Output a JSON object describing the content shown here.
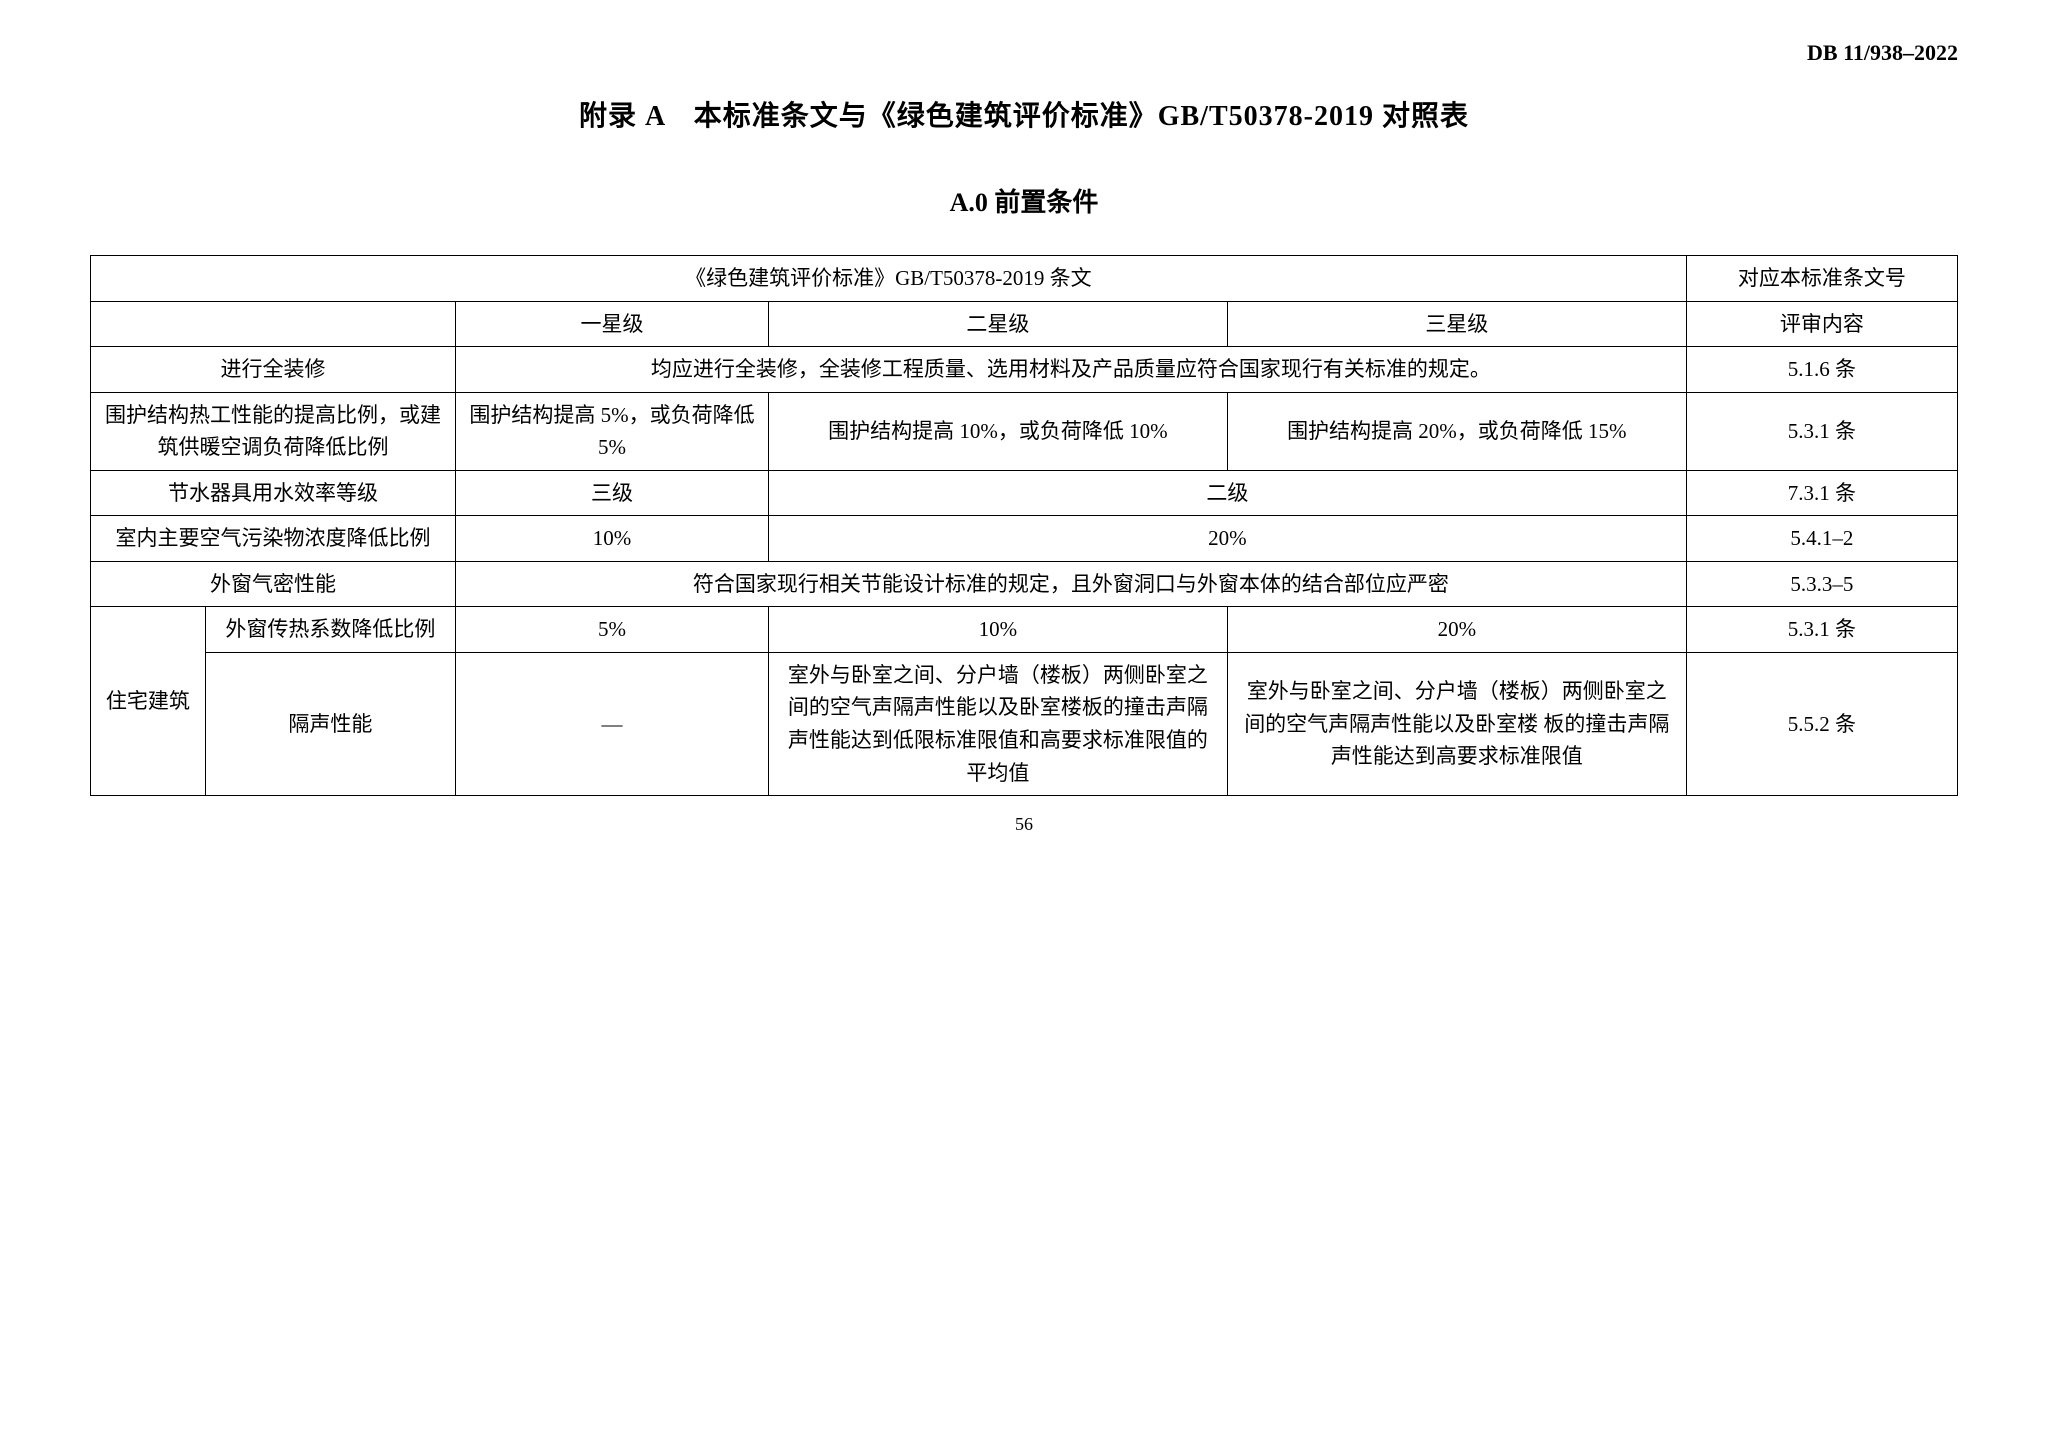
{
  "doc_code": "DB 11/938–2022",
  "title_main": "附录 A　本标准条文与《绿色建筑评价标准》GB/T50378-2019 对照表",
  "title_sub": "A.0 前置条件",
  "table": {
    "header": {
      "gb_clause": "《绿色建筑评价标准》GB/T50378-2019 条文",
      "local_clause": "对应本标准条文号",
      "star1": "一星级",
      "star2": "二星级",
      "star3": "三星级",
      "review": "评审内容"
    },
    "rows": {
      "r1_label": "进行全装修",
      "r1_body": "均应进行全装修，全装修工程质量、选用材料及产品质量应符合国家现行有关标准的规定。",
      "r1_ref": "5.1.6 条",
      "r2_label": "围护结构热工性能的提高比例，或建筑供暖空调负荷降低比例",
      "r2_s1": "围护结构提高 5%，或负荷降低 5%",
      "r2_s2": "围护结构提高 10%，或负荷降低 10%",
      "r2_s3": "围护结构提高 20%，或负荷降低 15%",
      "r2_ref": "5.3.1 条",
      "r3_label": "节水器具用水效率等级",
      "r3_s1": "三级",
      "r3_s23": "二级",
      "r3_ref": "7.3.1 条",
      "r4_label": "室内主要空气污染物浓度降低比例",
      "r4_s1": "10%",
      "r4_s23": "20%",
      "r4_ref": "5.4.1–2",
      "r5_label": "外窗气密性能",
      "r5_body": "符合国家现行相关节能设计标准的规定，且外窗洞口与外窗本体的结合部位应严密",
      "r5_ref": "5.3.3–5",
      "r6_group": "住宅建筑",
      "r6a_label": "外窗传热系数降低比例",
      "r6a_s1": "5%",
      "r6a_s2": "10%",
      "r6a_s3": "20%",
      "r6a_ref": "5.3.1 条",
      "r6b_label": "隔声性能",
      "r6b_s1": "—",
      "r6b_s2": "室外与卧室之间、分户墙（楼板）两侧卧室之间的空气声隔声性能以及卧室楼板的撞击声隔声性能达到低限标准限值和高要求标准限值的平均值",
      "r6b_s3": "室外与卧室之间、分户墙（楼板）两侧卧室之间的空气声隔声性能以及卧室楼 板的撞击声隔声性能达到高要求标准限值",
      "r6b_ref": "5.5.2 条"
    }
  },
  "page_number": "56"
}
